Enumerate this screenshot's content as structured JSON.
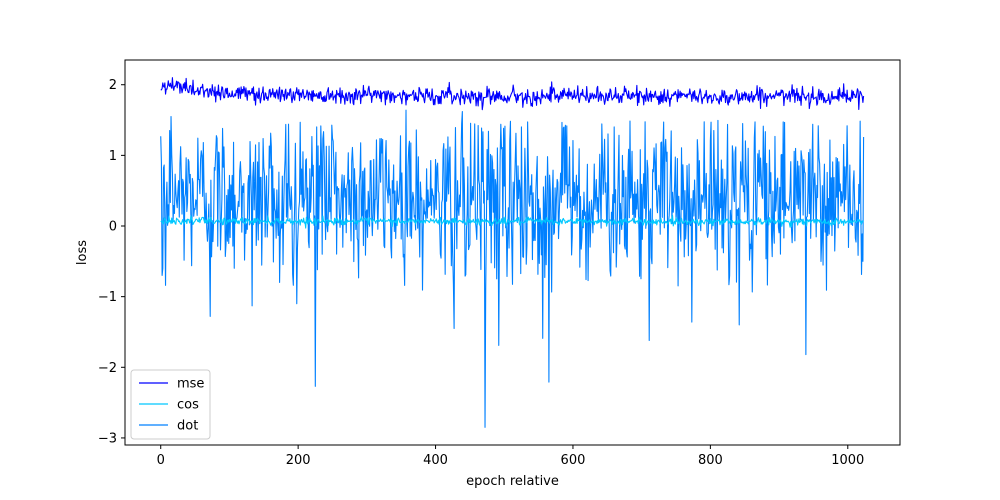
{
  "chart_data": {
    "type": "line",
    "title": "",
    "xlabel": "epoch relative",
    "ylabel": "loss",
    "xlim": [
      -52,
      1076
    ],
    "ylim": [
      -3.1,
      2.35
    ],
    "x_ticks": [
      0,
      200,
      400,
      600,
      800,
      1000
    ],
    "y_ticks": [
      -3,
      -2,
      -1,
      0,
      1,
      2
    ],
    "legend_position": "lower-left",
    "grid": false,
    "x_points": 1024,
    "series": [
      {
        "name": "mse",
        "color": "#0000ff",
        "mean": 1.86,
        "noise": 0.06,
        "anchors": [
          [
            0,
            1.93
          ],
          [
            10,
            1.98
          ],
          [
            20,
            1.98
          ],
          [
            38,
            1.95
          ],
          [
            100,
            1.88
          ],
          [
            200,
            1.86
          ],
          [
            300,
            1.86
          ],
          [
            400,
            1.84
          ],
          [
            500,
            1.84
          ],
          [
            600,
            1.84
          ],
          [
            700,
            1.84
          ],
          [
            800,
            1.83
          ],
          [
            900,
            1.84
          ],
          [
            1023,
            1.84
          ]
        ],
        "extremes": [
          [
            37,
            2.09
          ],
          [
            23,
            2.05
          ],
          [
            569,
            2.04
          ],
          [
            1016,
            1.65
          ]
        ]
      },
      {
        "name": "cos",
        "color": "#00c8ff",
        "mean": 0.06,
        "noise": 0.025,
        "anchors": [
          [
            0,
            0.07
          ],
          [
            1023,
            0.06
          ]
        ],
        "extremes": [
          [
            12,
            0.14
          ],
          [
            60,
            0.12
          ]
        ]
      },
      {
        "name": "dot",
        "color": "#0080ff",
        "mean": 0.45,
        "spread": 0.55,
        "anchors": [
          [
            0,
            1.25
          ],
          [
            1023,
            0.6
          ]
        ],
        "extremes": [
          [
            0,
            1.27
          ],
          [
            3,
            -0.6
          ],
          [
            7,
            -0.84
          ],
          [
            15,
            1.55
          ],
          [
            72,
            -1.28
          ],
          [
            133,
            -1.13
          ],
          [
            198,
            -1.1
          ],
          [
            225,
            -2.27
          ],
          [
            357,
            1.64
          ],
          [
            427,
            -1.45
          ],
          [
            439,
            1.62
          ],
          [
            472,
            -2.85
          ],
          [
            492,
            -1.69
          ],
          [
            556,
            -1.59
          ],
          [
            565,
            -2.21
          ],
          [
            711,
            -1.62
          ],
          [
            773,
            -1.36
          ],
          [
            842,
            -1.4
          ],
          [
            939,
            -1.82
          ],
          [
            1023,
            1.26
          ]
        ]
      }
    ]
  }
}
